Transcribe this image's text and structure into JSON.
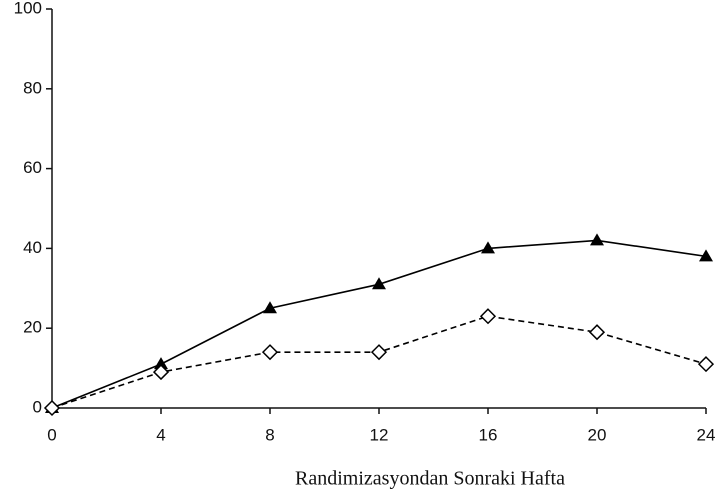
{
  "chart_data": {
    "type": "line",
    "x_label": "Randimizasyondan Sonraki Hafta",
    "x": [
      0,
      4,
      8,
      12,
      16,
      20,
      24
    ],
    "series": [
      {
        "color": "#000000",
        "marker": "triangle",
        "dashed": false,
        "values": [
          0,
          11,
          25,
          31,
          40,
          42,
          38
        ]
      },
      {
        "color": "#000000",
        "marker": "diamond",
        "dashed": true,
        "values": [
          0,
          9,
          14,
          14,
          23,
          19,
          11
        ]
      }
    ],
    "xlim": [
      0,
      24
    ],
    "xticks": [
      0,
      4,
      8,
      12,
      16,
      20,
      24
    ],
    "ylim": [
      0,
      100
    ],
    "yticks": [
      0,
      20,
      40,
      60,
      80,
      100
    ],
    "grid": false
  }
}
